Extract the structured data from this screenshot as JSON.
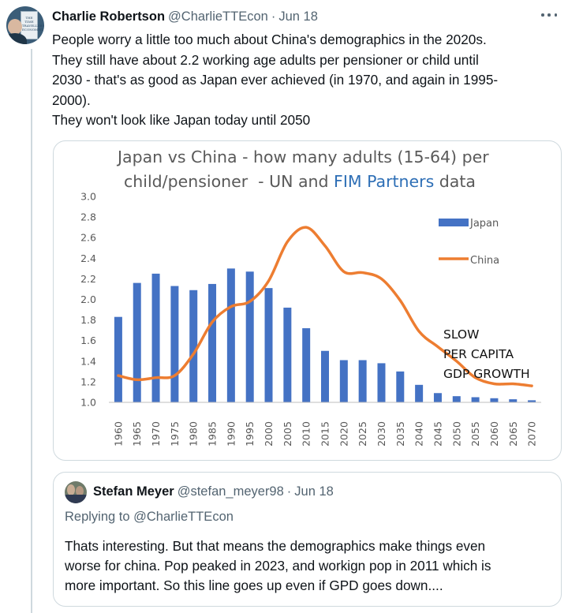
{
  "tweet": {
    "author": "Charlie Robertson",
    "handle": "@CharlieTTEcon",
    "separator": "·",
    "date": "Jun 18",
    "avatar_text": "THE TIME TRAVELLER'S ECONOMIST",
    "text_lines": [
      "People worry a little too much about China's demographics in the 2020s.",
      "They still have about 2.2 working age adults per pensioner or child until",
      "2030 - that's as good as Japan ever achieved (in 1970, and again in 1995-",
      "2000).",
      "They won't look like Japan today until 2050"
    ]
  },
  "icons": {
    "more": "more-horizontal-icon"
  },
  "chart_data": {
    "type": "bar",
    "title_line1": "Japan vs China - how many adults (15-64) per",
    "title_line2_a": "child/pensioner  - UN and ",
    "title_line2_b": "FIM Partners",
    "title_line2_c": " data",
    "categories": [
      "1960",
      "1965",
      "1970",
      "1975",
      "1980",
      "1985",
      "1990",
      "1995",
      "2000",
      "2005",
      "2010",
      "2015",
      "2020",
      "2025",
      "2030",
      "2035",
      "2040",
      "2045",
      "2050",
      "2055",
      "2060",
      "2065",
      "2070"
    ],
    "y_ticks": [
      "1.0",
      "1.2",
      "1.4",
      "1.6",
      "1.8",
      "2.0",
      "2.2",
      "2.4",
      "2.6",
      "2.8",
      "3.0"
    ],
    "ylim": [
      1.0,
      3.0
    ],
    "series": [
      {
        "name": "Japan",
        "kind": "bar",
        "color": "#4472c4",
        "values": [
          1.83,
          2.16,
          2.25,
          2.13,
          2.09,
          2.15,
          2.3,
          2.27,
          2.11,
          1.92,
          1.72,
          1.5,
          1.41,
          1.41,
          1.38,
          1.3,
          1.17,
          1.09,
          1.06,
          1.05,
          1.04,
          1.03,
          1.02
        ]
      },
      {
        "name": "China",
        "kind": "line",
        "color": "#ed7d31",
        "values": [
          1.26,
          1.22,
          1.24,
          1.26,
          1.47,
          1.78,
          1.93,
          1.98,
          2.18,
          2.56,
          2.7,
          2.52,
          2.27,
          2.26,
          2.2,
          1.99,
          1.69,
          1.54,
          1.4,
          1.24,
          1.18,
          1.18,
          1.16
        ]
      }
    ],
    "legend_position": "top-right",
    "annotation_lines": [
      "SLOW",
      "PER CAPITA",
      "GDP GROWTH"
    ],
    "grid": false
  },
  "quote": {
    "author": "Stefan Meyer",
    "handle": "@stefan_meyer98",
    "separator": "·",
    "date": "Jun 18",
    "replying_to": "Replying to @CharlieTTEcon",
    "text_lines": [
      "Thats interesting. But that means the demographics make things even",
      "worse for china. Pop peaked in 2023, and workign pop in 2011 which is",
      "more important.  So this line goes up even if GPD goes down...."
    ]
  }
}
